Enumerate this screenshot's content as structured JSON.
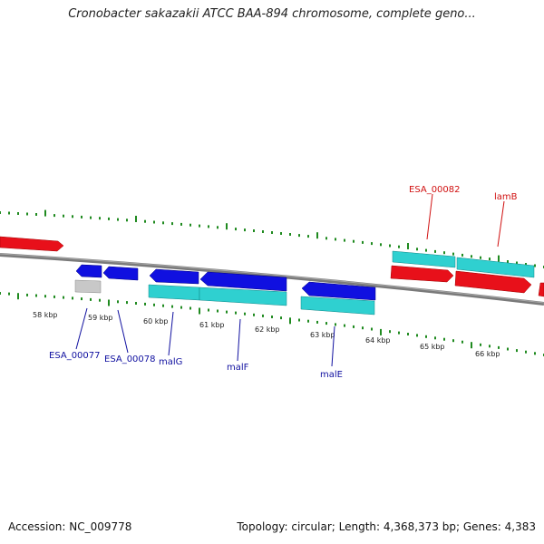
{
  "title": "Cronobacter sakazakii ATCC BAA-894 chromosome, complete geno...",
  "footer": {
    "accession": "Accession: NC_009778",
    "summary": "Topology: circular; Length: 4,368,373 bp; Genes: 4,383"
  },
  "colors": {
    "background": "#ffffff",
    "backbone": "#808080",
    "tick_major": "#1f8a1f",
    "tick_minor": "#1f8a1f",
    "forward_gene": "#e8101a",
    "reverse_gene": "#1010e0",
    "cds_bar": "#2fd0d0",
    "other_feature": "#c8c8c8",
    "label_blue": "#1010a0",
    "label_red": "#d01010"
  },
  "scale_labels": [
    "58 kbp",
    "59 kbp",
    "60 kbp",
    "61 kbp",
    "62 kbp",
    "63 kbp",
    "64 kbp",
    "65 kbp",
    "66 kbp"
  ],
  "genes": [
    {
      "label": "ESA_00077",
      "strand": "-",
      "color": "reverse_gene"
    },
    {
      "label": "ESA_00078",
      "strand": "-",
      "color": "reverse_gene"
    },
    {
      "label": "malG",
      "strand": "-",
      "color": "reverse_gene"
    },
    {
      "label": "malF",
      "strand": "-",
      "color": "reverse_gene"
    },
    {
      "label": "malE",
      "strand": "-",
      "color": "reverse_gene"
    },
    {
      "label": "ESA_00082",
      "strand": "+",
      "color": "forward_gene"
    },
    {
      "label": "lamB",
      "strand": "+",
      "color": "forward_gene"
    }
  ]
}
